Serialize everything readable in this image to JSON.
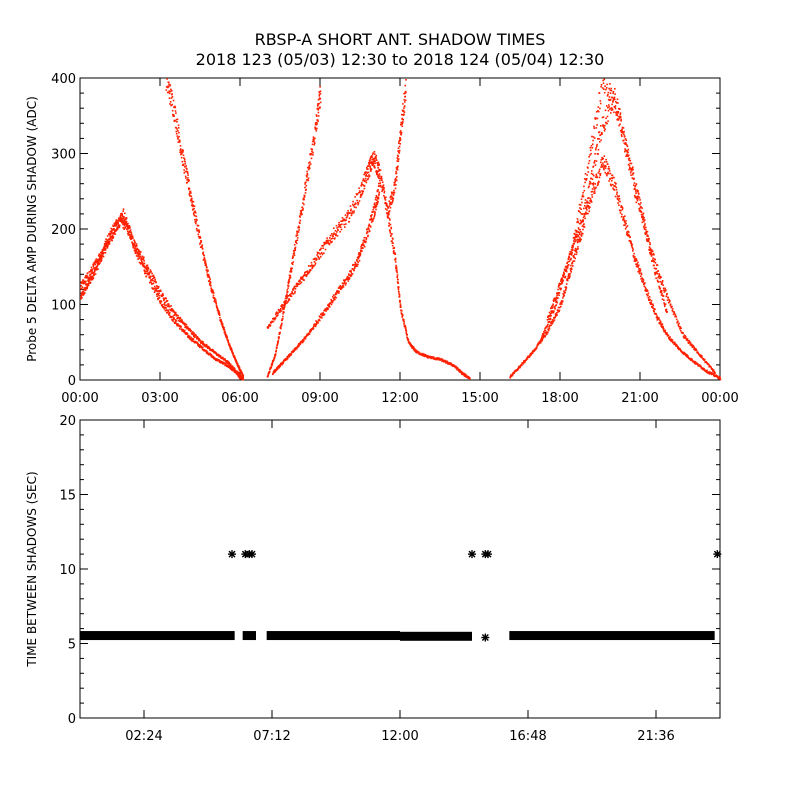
{
  "title": {
    "line1": "RBSP-A SHORT ANT. SHADOW TIMES",
    "line2": "2018 123 (05/03) 12:30 to 2018 124 (05/04) 12:30"
  },
  "colors": {
    "top_series": "#ff2000",
    "bottom_series": "#000000",
    "axes": "#000000"
  },
  "chart_data": [
    {
      "type": "scatter",
      "ylabel": "Probe 5 DELTA AMP DURING SHADOW (ADC)",
      "xlabel": "",
      "x_unit": "hours",
      "xlim": [
        0,
        24
      ],
      "ylim": [
        0,
        400
      ],
      "x_ticks": [
        0,
        3,
        6,
        9,
        12,
        15,
        18,
        21,
        24
      ],
      "x_tick_labels": [
        "00:00",
        "03:00",
        "06:00",
        "09:00",
        "12:00",
        "15:00",
        "18:00",
        "21:00",
        "00:00"
      ],
      "y_ticks": [
        0,
        100,
        200,
        300,
        400
      ],
      "y_tick_labels": [
        "0",
        "100",
        "200",
        "300",
        "400"
      ],
      "series": [
        {
          "segments": [
            {
              "points": [
                [
                  0.0,
                  110
                ],
                [
                  0.3,
                  130
                ],
                [
                  0.6,
                  150
                ],
                [
                  0.9,
                  175
                ],
                [
                  1.2,
                  195
                ],
                [
                  1.5,
                  215
                ],
                [
                  1.8,
                  200
                ],
                [
                  2.1,
                  170
                ],
                [
                  2.5,
                  140
                ],
                [
                  3.0,
                  105
                ],
                [
                  3.5,
                  80
                ],
                [
                  4.0,
                  60
                ],
                [
                  4.5,
                  45
                ],
                [
                  5.0,
                  30
                ],
                [
                  5.5,
                  20
                ],
                [
                  5.8,
                  12
                ],
                [
                  6.0,
                  3
                ]
              ]
            },
            {
              "points": [
                [
                  0.0,
                  125
                ],
                [
                  0.4,
                  145
                ],
                [
                  0.8,
                  170
                ],
                [
                  1.2,
                  200
                ],
                [
                  1.6,
                  220
                ],
                [
                  2.0,
                  180
                ],
                [
                  2.5,
                  150
                ],
                [
                  3.0,
                  115
                ],
                [
                  3.5,
                  90
                ],
                [
                  4.0,
                  70
                ],
                [
                  4.5,
                  52
                ],
                [
                  5.0,
                  38
                ],
                [
                  5.5,
                  25
                ],
                [
                  5.9,
                  10
                ],
                [
                  6.1,
                  2
                ]
              ]
            },
            {
              "points": [
                [
                  3.2,
                  400
                ],
                [
                  3.5,
                  360
                ],
                [
                  3.8,
                  300
                ],
                [
                  4.1,
                  250
                ],
                [
                  4.4,
                  200
                ],
                [
                  4.7,
                  150
                ],
                [
                  5.0,
                  110
                ],
                [
                  5.3,
                  75
                ],
                [
                  5.6,
                  45
                ],
                [
                  5.9,
                  20
                ],
                [
                  6.1,
                  5
                ]
              ]
            },
            {
              "points": [
                [
                  7.0,
                  5
                ],
                [
                  7.3,
                  35
                ],
                [
                  7.6,
                  90
                ],
                [
                  7.9,
                  150
                ],
                [
                  8.2,
                  210
                ],
                [
                  8.5,
                  270
                ],
                [
                  8.8,
                  330
                ],
                [
                  9.0,
                  385
                ]
              ]
            },
            {
              "points": [
                [
                  7.0,
                  70
                ],
                [
                  7.5,
                  95
                ],
                [
                  8.0,
                  120
                ],
                [
                  8.5,
                  145
                ],
                [
                  9.0,
                  170
                ],
                [
                  9.5,
                  195
                ],
                [
                  10.0,
                  215
                ],
                [
                  10.5,
                  250
                ],
                [
                  10.8,
                  280
                ],
                [
                  11.0,
                  295
                ],
                [
                  11.2,
                  275
                ],
                [
                  11.5,
                  225
                ],
                [
                  11.8,
                  160
                ],
                [
                  12.0,
                  95
                ],
                [
                  12.3,
                  50
                ],
                [
                  12.6,
                  38
                ],
                [
                  13.0,
                  32
                ],
                [
                  13.5,
                  28
                ],
                [
                  14.0,
                  20
                ],
                [
                  14.3,
                  10
                ],
                [
                  14.6,
                  3
                ]
              ]
            },
            {
              "points": [
                [
                  7.2,
                  10
                ],
                [
                  7.6,
                  25
                ],
                [
                  8.0,
                  40
                ],
                [
                  8.5,
                  60
                ],
                [
                  9.0,
                  85
                ],
                [
                  9.5,
                  110
                ],
                [
                  10.0,
                  135
                ],
                [
                  10.4,
                  160
                ],
                [
                  10.7,
                  190
                ],
                [
                  11.0,
                  225
                ],
                [
                  11.2,
                  255
                ]
              ]
            },
            {
              "points": [
                [
                  11.5,
                  220
                ],
                [
                  11.8,
                  260
                ],
                [
                  12.0,
                  330
                ],
                [
                  12.2,
                  390
                ]
              ]
            },
            {
              "points": [
                [
                  16.1,
                  5
                ],
                [
                  16.5,
                  20
                ],
                [
                  17.0,
                  40
                ],
                [
                  17.5,
                  65
                ],
                [
                  18.0,
                  100
                ],
                [
                  18.4,
                  150
                ],
                [
                  18.8,
                  200
                ],
                [
                  19.2,
                  250
                ],
                [
                  19.6,
                  290
                ],
                [
                  20.0,
                  260
                ],
                [
                  20.4,
                  210
                ],
                [
                  20.8,
                  160
                ],
                [
                  21.2,
                  120
                ],
                [
                  21.6,
                  85
                ],
                [
                  22.0,
                  60
                ],
                [
                  22.5,
                  40
                ],
                [
                  23.0,
                  25
                ],
                [
                  23.5,
                  12
                ],
                [
                  24.0,
                  3
                ]
              ]
            },
            {
              "points": [
                [
                  17.5,
                  80
                ],
                [
                  18.0,
                  130
                ],
                [
                  18.5,
                  180
                ],
                [
                  19.0,
                  240
                ],
                [
                  19.5,
                  330
                ],
                [
                  20.0,
                  380
                ],
                [
                  20.5,
                  300
                ],
                [
                  21.0,
                  230
                ],
                [
                  21.5,
                  150
                ],
                [
                  22.0,
                  90
                ]
              ]
            },
            {
              "points": [
                [
                  17.2,
                  50
                ],
                [
                  17.8,
                  100
                ],
                [
                  18.4,
                  170
                ],
                [
                  19.0,
                  280
                ],
                [
                  19.6,
                  400
                ],
                [
                  20.2,
                  350
                ],
                [
                  20.8,
                  250
                ],
                [
                  21.4,
                  170
                ],
                [
                  22.0,
                  110
                ],
                [
                  22.6,
                  60
                ],
                [
                  23.2,
                  35
                ],
                [
                  23.8,
                  10
                ]
              ]
            }
          ]
        }
      ]
    },
    {
      "type": "scatter",
      "ylabel": "TIME BETWEEN SHADOWS (SEC)",
      "xlabel": "",
      "x_unit": "hours",
      "xlim": [
        0,
        24
      ],
      "ylim": [
        0,
        20
      ],
      "x_ticks": [
        2.4,
        7.2,
        12.0,
        16.8,
        21.6
      ],
      "x_tick_labels": [
        "02:24",
        "07:12",
        "12:00",
        "16:48",
        "21:36"
      ],
      "y_ticks": [
        0,
        5,
        10,
        15,
        20
      ],
      "y_tick_labels": [
        "0",
        "5",
        "10",
        "15",
        "20"
      ],
      "series": [
        {
          "bands": [
            {
              "x_start": 0.0,
              "x_end": 5.8,
              "y": 5.5
            },
            {
              "x_start": 6.1,
              "x_end": 6.6,
              "y": 5.5
            },
            {
              "x_start": 7.0,
              "x_end": 12.0,
              "y": 5.5
            },
            {
              "x_start": 12.0,
              "x_end": 14.7,
              "y": 5.45
            },
            {
              "x_start": 16.1,
              "x_end": 23.8,
              "y": 5.5
            }
          ],
          "points": [
            [
              5.7,
              11
            ],
            [
              6.2,
              11
            ],
            [
              6.35,
              11
            ],
            [
              6.45,
              11
            ],
            [
              14.7,
              11
            ],
            [
              15.2,
              11
            ],
            [
              15.3,
              11
            ],
            [
              15.2,
              5.4
            ],
            [
              23.9,
              11
            ]
          ]
        }
      ]
    }
  ]
}
